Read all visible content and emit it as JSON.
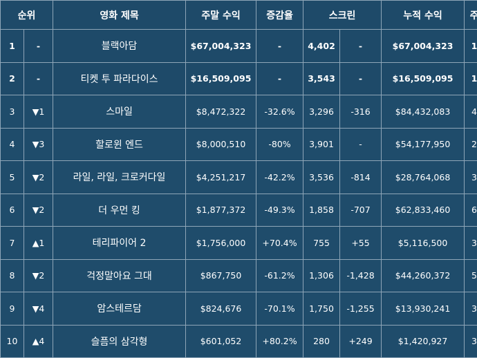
{
  "headers": [
    "순위",
    "영화 제목",
    "주말 수익",
    "증감율",
    "스크린",
    "누적 수익",
    "주"
  ],
  "rows": [
    {
      "rank": "1",
      "change": "-",
      "title": "블랙아담",
      "weekend": "$67,004,323",
      "pct": "-",
      "screens": "4,402",
      "screen_change": "-",
      "total": "$67,004,323",
      "weeks": "1",
      "bold": true
    },
    {
      "rank": "2",
      "change": "-",
      "title": "티켓 투 파라다이스",
      "weekend": "$16,509,095",
      "pct": "-",
      "screens": "3,543",
      "screen_change": "-",
      "total": "$16,509,095",
      "weeks": "1",
      "bold": true
    },
    {
      "rank": "3",
      "change": "▼1",
      "title": "스마일",
      "weekend": "$8,472,322",
      "pct": "-32.6%",
      "screens": "3,296",
      "screen_change": "-316",
      "total": "$84,432,083",
      "weeks": "4",
      "bold": false
    },
    {
      "rank": "4",
      "change": "▼3",
      "title": "할로윈 엔드",
      "weekend": "$8,000,510",
      "pct": "-80%",
      "screens": "3,901",
      "screen_change": "-",
      "total": "$54,177,950",
      "weeks": "2",
      "bold": false
    },
    {
      "rank": "5",
      "change": "▼2",
      "title": "라일, 라일, 크로커다일",
      "weekend": "$4,251,217",
      "pct": "-42.2%",
      "screens": "3,536",
      "screen_change": "-814",
      "total": "$28,764,068",
      "weeks": "3",
      "bold": false
    },
    {
      "rank": "6",
      "change": "▼2",
      "title": "더 우먼 킹",
      "weekend": "$1,877,372",
      "pct": "-49.3%",
      "screens": "1,858",
      "screen_change": "-707",
      "total": "$62,833,460",
      "weeks": "6",
      "bold": false
    },
    {
      "rank": "7",
      "change": "▲1",
      "title": "테리파이어 2",
      "weekend": "$1,756,000",
      "pct": "+70.4%",
      "screens": "755",
      "screen_change": "+55",
      "total": "$5,116,500",
      "weeks": "3",
      "bold": false
    },
    {
      "rank": "8",
      "change": "▼2",
      "title": "걱정말아요 그대",
      "weekend": "$867,750",
      "pct": "-61.2%",
      "screens": "1,306",
      "screen_change": "-1,428",
      "total": "$44,260,372",
      "weeks": "5",
      "bold": false
    },
    {
      "rank": "9",
      "change": "▼4",
      "title": "암스테르담",
      "weekend": "$824,676",
      "pct": "-70.1%",
      "screens": "1,750",
      "screen_change": "-1,255",
      "total": "$13,930,241",
      "weeks": "3",
      "bold": false
    },
    {
      "rank": "10",
      "change": "▲4",
      "title": "슬픔의 삼각형",
      "weekend": "$601,052",
      "pct": "+80.2%",
      "screens": "280",
      "screen_change": "+249",
      "total": "$1,420,927",
      "weeks": "3",
      "bold": false
    }
  ]
}
